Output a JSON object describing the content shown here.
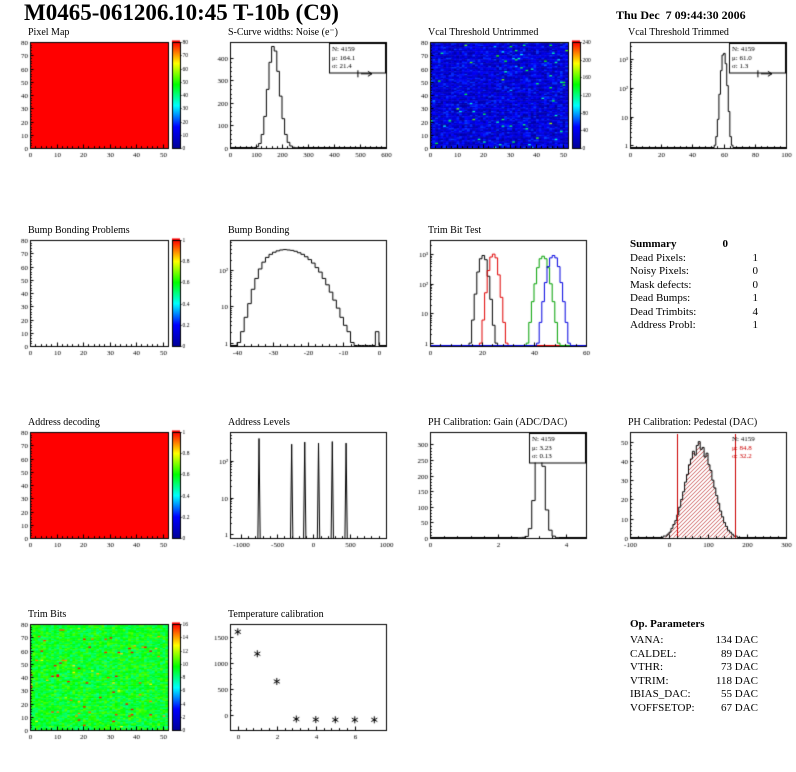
{
  "header": {
    "title": "M0465-061206.10:45 T-10b (C9)",
    "date": "Thu Dec  7 09:44:30 2006"
  },
  "palette": [
    "#000099",
    "#0000ff",
    "#00ffff",
    "#00ff00",
    "#ffff00",
    "#ff0000"
  ],
  "summary": {
    "title": "Summary",
    "value": "0",
    "rows": [
      {
        "label": "Dead Pixels:",
        "value": "1"
      },
      {
        "label": "Noisy Pixels:",
        "value": "0"
      },
      {
        "label": "Mask defects:",
        "value": "0"
      },
      {
        "label": "Dead Bumps:",
        "value": "1"
      },
      {
        "label": "Dead Trimbits:",
        "value": "4"
      },
      {
        "label": "Address Probl:",
        "value": "1"
      }
    ]
  },
  "op_parameters": {
    "title": "Op. Parameters",
    "rows": [
      {
        "label": "VANA:",
        "value": "134 DAC"
      },
      {
        "label": "CALDEL:",
        "value": "89 DAC"
      },
      {
        "label": "VTHR:",
        "value": "73 DAC"
      },
      {
        "label": "VTRIM:",
        "value": "118 DAC"
      },
      {
        "label": "IBIAS_DAC:",
        "value": "55 DAC"
      },
      {
        "label": "VOFFSETOP:",
        "value": "67 DAC"
      }
    ]
  },
  "chart_data": [
    {
      "id": "pixel_map",
      "type": "heatmap",
      "title": "Pixel Map",
      "xlim": [
        0,
        52
      ],
      "ylim": [
        0,
        80
      ],
      "xticks": [
        0,
        10,
        20,
        30,
        40,
        50
      ],
      "yticks": [
        0,
        10,
        20,
        30,
        40,
        50,
        60,
        70,
        80
      ],
      "fill": "uniform_max",
      "colorbar": {
        "zlim": [
          0,
          80
        ],
        "ticks": [
          0,
          10,
          20,
          30,
          40,
          50,
          60,
          70,
          80
        ]
      }
    },
    {
      "id": "scurve_noise",
      "type": "hist",
      "title": "S-Curve widths: Noise (e⁻)",
      "xlim": [
        0,
        600
      ],
      "ylim": [
        0,
        470
      ],
      "xticks": [
        0,
        100,
        200,
        300,
        400,
        500,
        600
      ],
      "yticks": [
        0,
        100,
        200,
        300,
        400
      ],
      "hist": {
        "x_start": 90,
        "bin_width": 10,
        "counts": [
          2,
          6,
          20,
          60,
          140,
          260,
          380,
          450,
          430,
          340,
          230,
          130,
          60,
          25,
          9,
          3,
          1
        ]
      },
      "stats": [
        {
          "t": "N: 4159"
        },
        {
          "t": "μ: 164.1"
        },
        {
          "t": "σ: 21.4"
        }
      ],
      "overflow_arrow": true
    },
    {
      "id": "vcal_untrimmed",
      "type": "heatmap",
      "title": "Vcal Threshold Untrimmed",
      "xlim": [
        0,
        52
      ],
      "ylim": [
        0,
        80
      ],
      "xticks": [
        0,
        10,
        20,
        30,
        40,
        50
      ],
      "yticks": [
        0,
        10,
        20,
        30,
        40,
        50,
        60,
        70,
        80
      ],
      "fill": "noise",
      "noise": {
        "seed": 42,
        "base": 0.13,
        "spread": 0.12,
        "speck": 0.02
      },
      "colorbar": {
        "zlim": [
          0,
          240
        ],
        "ticks": [
          0,
          40,
          80,
          120,
          160,
          200,
          240
        ]
      }
    },
    {
      "id": "vcal_trimmed",
      "type": "hist",
      "title": "Vcal Threshold Trimmed",
      "logy": true,
      "xlim": [
        0,
        100
      ],
      "ylim": [
        0.8,
        4000
      ],
      "xticks": [
        0,
        20,
        40,
        60,
        80,
        100
      ],
      "hist": {
        "x_start": 54,
        "bin_width": 1,
        "counts": [
          1,
          2,
          8,
          60,
          400,
          1400,
          1600,
          700,
          120,
          15,
          2,
          1
        ]
      },
      "stats": [
        {
          "t": "N: 4159"
        },
        {
          "t": "μ: 61.0"
        },
        {
          "t": "σ: 1.3"
        }
      ],
      "overflow_arrow": true
    },
    {
      "id": "bump_problems",
      "type": "heatmap",
      "title": "Bump Bonding Problems",
      "xlim": [
        0,
        52
      ],
      "ylim": [
        0,
        80
      ],
      "xticks": [
        0,
        10,
        20,
        30,
        40,
        50
      ],
      "yticks": [
        0,
        10,
        20,
        30,
        40,
        50,
        60,
        70,
        80
      ],
      "fill": "empty",
      "colorbar": {
        "zlim": [
          0,
          1
        ],
        "ticks": [
          0,
          0.2,
          0.4,
          0.6,
          0.8,
          1
        ]
      }
    },
    {
      "id": "bump_bonding",
      "type": "hist",
      "title": "Bump Bonding",
      "logy": true,
      "xlim": [
        -42,
        2
      ],
      "ylim": [
        0.8,
        700
      ],
      "xticks": [
        -40,
        -30,
        -20,
        -10,
        0
      ],
      "hist": {
        "x_start": -40,
        "bin_width": 1,
        "counts": [
          1,
          2,
          5,
          12,
          30,
          60,
          110,
          170,
          230,
          280,
          320,
          350,
          370,
          380,
          370,
          360,
          340,
          310,
          280,
          240,
          200,
          160,
          120,
          90,
          60,
          40,
          25,
          15,
          9,
          5,
          3,
          2,
          1,
          0,
          0,
          0,
          0,
          0,
          0,
          2
        ]
      }
    },
    {
      "id": "trim_bit_test",
      "type": "multihist",
      "title": "Trim Bit Test",
      "logy": true,
      "xlim": [
        0,
        60
      ],
      "ylim": [
        0.8,
        3000
      ],
      "xticks": [
        0,
        20,
        40,
        60
      ],
      "series": [
        {
          "name": "trim bit 0",
          "color": "#000000",
          "x_start": 15,
          "bin_width": 1,
          "counts": [
            1,
            6,
            45,
            250,
            700,
            900,
            650,
            180,
            30,
            4,
            1
          ]
        },
        {
          "name": "trim bit 1",
          "color": "#e00000",
          "x_start": 19,
          "bin_width": 1,
          "counts": [
            1,
            6,
            50,
            280,
            800,
            1000,
            750,
            200,
            35,
            5,
            1
          ]
        },
        {
          "name": "trim bit 2",
          "color": "#00a000",
          "x_start": 37,
          "bin_width": 1,
          "counts": [
            1,
            5,
            25,
            100,
            350,
            700,
            850,
            700,
            350,
            100,
            25,
            5,
            1
          ]
        },
        {
          "name": "trim bit 3",
          "color": "#0000e0",
          "x_start": 41,
          "bin_width": 1,
          "counts": [
            1,
            5,
            25,
            110,
            380,
            750,
            900,
            750,
            380,
            110,
            25,
            5,
            1
          ]
        }
      ]
    },
    {
      "id": "address_decoding",
      "type": "heatmap",
      "title": "Address decoding",
      "xlim": [
        0,
        52
      ],
      "ylim": [
        0,
        80
      ],
      "xticks": [
        0,
        10,
        20,
        30,
        40,
        50
      ],
      "yticks": [
        0,
        10,
        20,
        30,
        40,
        50,
        60,
        70,
        80
      ],
      "fill": "uniform_max",
      "colorbar": {
        "zlim": [
          0,
          1
        ],
        "ticks": [
          0,
          0.2,
          0.4,
          0.6,
          0.8,
          1
        ]
      }
    },
    {
      "id": "address_levels",
      "type": "spikes",
      "title": "Address Levels",
      "logy": true,
      "xlim": [
        -1150,
        1000
      ],
      "ylim": [
        0.8,
        600
      ],
      "xticks": [
        -1000,
        -500,
        0,
        500,
        1000
      ],
      "spikes": [
        [
          -750,
          400
        ],
        [
          -300,
          280
        ],
        [
          -120,
          320
        ],
        [
          70,
          300
        ],
        [
          260,
          330
        ],
        [
          450,
          300
        ]
      ]
    },
    {
      "id": "ph_gain",
      "type": "hist",
      "title": "PH Calibration: Gain (ADC/DAC)",
      "xlim": [
        0,
        4.6
      ],
      "ylim": [
        0,
        340
      ],
      "xticks": [
        0,
        2,
        4
      ],
      "yticks": [
        0,
        50,
        100,
        150,
        200,
        250,
        300
      ],
      "hist": {
        "x_start": 2.6,
        "bin_width": 0.1,
        "counts": [
          1,
          2,
          5,
          30,
          120,
          280,
          320,
          230,
          90,
          25,
          6,
          1
        ]
      },
      "stats": [
        {
          "t": "N: 4159"
        },
        {
          "t": "μ: 3.23"
        },
        {
          "t": "σ: 0.13"
        }
      ]
    },
    {
      "id": "ph_pedestal",
      "type": "hist",
      "title": "PH Calibration: Pedestal (DAC)",
      "xlim": [
        -100,
        300
      ],
      "ylim": [
        0,
        55
      ],
      "xticks": [
        -100,
        0,
        100,
        200,
        300
      ],
      "yticks": [
        0,
        10,
        20,
        30,
        40,
        50
      ],
      "fill_style": "hatch_red",
      "hist": {
        "x_start": -15,
        "bin_width": 5,
        "counts": [
          1,
          1,
          2,
          3,
          5,
          7,
          9,
          12,
          16,
          20,
          24,
          29,
          33,
          38,
          41,
          45,
          43,
          48,
          50,
          46,
          47,
          42,
          44,
          38,
          35,
          30,
          26,
          22,
          18,
          14,
          11,
          8,
          6,
          4,
          3,
          2,
          1,
          1
        ]
      },
      "vlines": [
        {
          "x": 20,
          "color": "#cc0000"
        },
        {
          "x": 168,
          "color": "#cc0000"
        }
      ],
      "stats": [
        {
          "t": "N: 4159"
        },
        {
          "t": "μ: 84.8",
          "c": "#cc0000"
        },
        {
          "t": "σ: 32.2",
          "c": "#cc0000"
        }
      ],
      "stats_box": false
    },
    {
      "id": "trim_bits",
      "type": "heatmap",
      "title": "Trim Bits",
      "xlim": [
        0,
        52
      ],
      "ylim": [
        0,
        80
      ],
      "xticks": [
        0,
        10,
        20,
        30,
        40,
        50
      ],
      "yticks": [
        0,
        10,
        20,
        30,
        40,
        50,
        60,
        70,
        80
      ],
      "fill": "noise",
      "noise": {
        "seed": 7,
        "base": 0.58,
        "spread": 0.09,
        "speck": 0.015
      },
      "colorbar": {
        "zlim": [
          0,
          16
        ],
        "ticks": [
          0,
          2,
          4,
          6,
          8,
          10,
          12,
          14,
          16
        ]
      }
    },
    {
      "id": "temp_calibration",
      "type": "scatter",
      "title": "Temperature calibration",
      "xlim": [
        -0.4,
        7.6
      ],
      "ylim": [
        -280,
        1750
      ],
      "xticks": [
        0,
        2,
        4,
        6
      ],
      "yticks": [
        0,
        500,
        1000,
        1500
      ],
      "points": [
        [
          0,
          1600
        ],
        [
          1,
          1180
        ],
        [
          2,
          650
        ],
        [
          3,
          -70
        ],
        [
          4,
          -80
        ],
        [
          5,
          -85
        ],
        [
          6,
          -85
        ],
        [
          7,
          -85
        ]
      ]
    }
  ]
}
